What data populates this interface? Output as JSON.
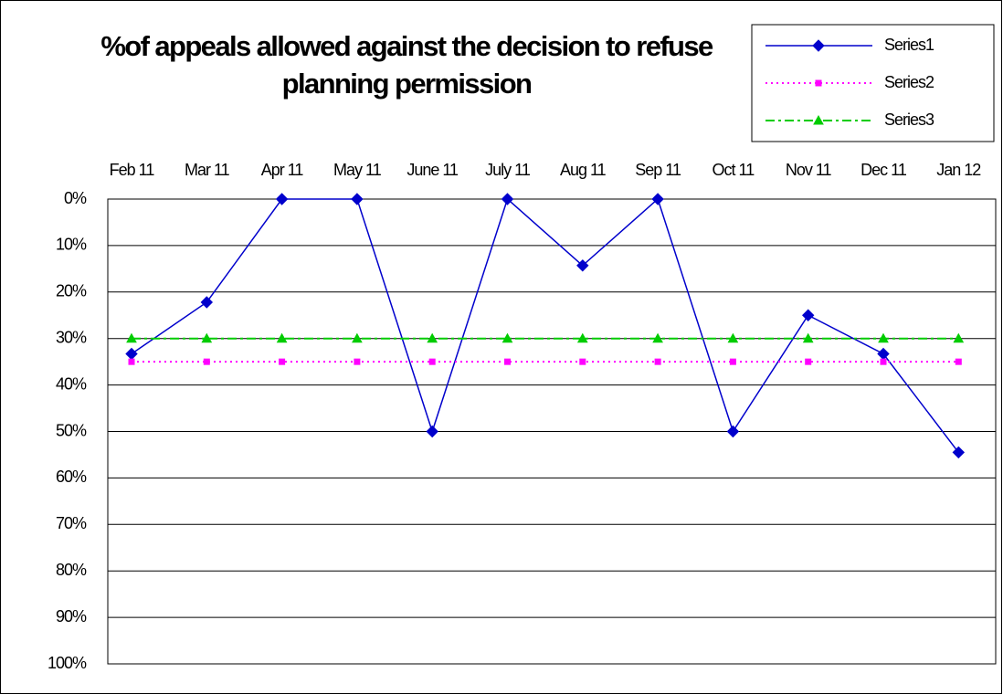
{
  "chart_data": {
    "type": "line",
    "title": "%of appeals allowed against the decision to refuse planning permission",
    "categories": [
      "Feb 11",
      "Mar 11",
      "Apr 11",
      "May 11",
      "June 11",
      "July 11",
      "Aug 11",
      "Sep 11",
      "Oct 11",
      "Nov 11",
      "Dec 11",
      "Jan 12"
    ],
    "series": [
      {
        "name": "Series1",
        "color": "#0000cc",
        "marker": "diamond",
        "line_style": "solid",
        "values": [
          33.3,
          22.2,
          0,
          0,
          50,
          0,
          14.3,
          0,
          50,
          25,
          33.3,
          54.5
        ]
      },
      {
        "name": "Series2",
        "color": "#ff00ff",
        "marker": "square",
        "line_style": "dotted",
        "values": [
          35,
          35,
          35,
          35,
          35,
          35,
          35,
          35,
          35,
          35,
          35,
          35
        ]
      },
      {
        "name": "Series3",
        "color": "#00cc00",
        "marker": "triangle",
        "line_style": "dashdot",
        "values": [
          30,
          30,
          30,
          30,
          30,
          30,
          30,
          30,
          30,
          30,
          30,
          30
        ]
      }
    ],
    "ylim": [
      0,
      100
    ],
    "y_reversed": true,
    "yticks": [
      {
        "value": 0,
        "label": "0%"
      },
      {
        "value": 10,
        "label": "10%"
      },
      {
        "value": 20,
        "label": "20%"
      },
      {
        "value": 30,
        "label": "30%"
      },
      {
        "value": 40,
        "label": "40%"
      },
      {
        "value": 50,
        "label": "50%"
      },
      {
        "value": 60,
        "label": "60%"
      },
      {
        "value": 70,
        "label": "70%"
      },
      {
        "value": 80,
        "label": "80%"
      },
      {
        "value": 90,
        "label": "90%"
      },
      {
        "value": 100,
        "label": "100%"
      }
    ],
    "grid": true,
    "legend": "top-right",
    "category_axis": "top"
  }
}
